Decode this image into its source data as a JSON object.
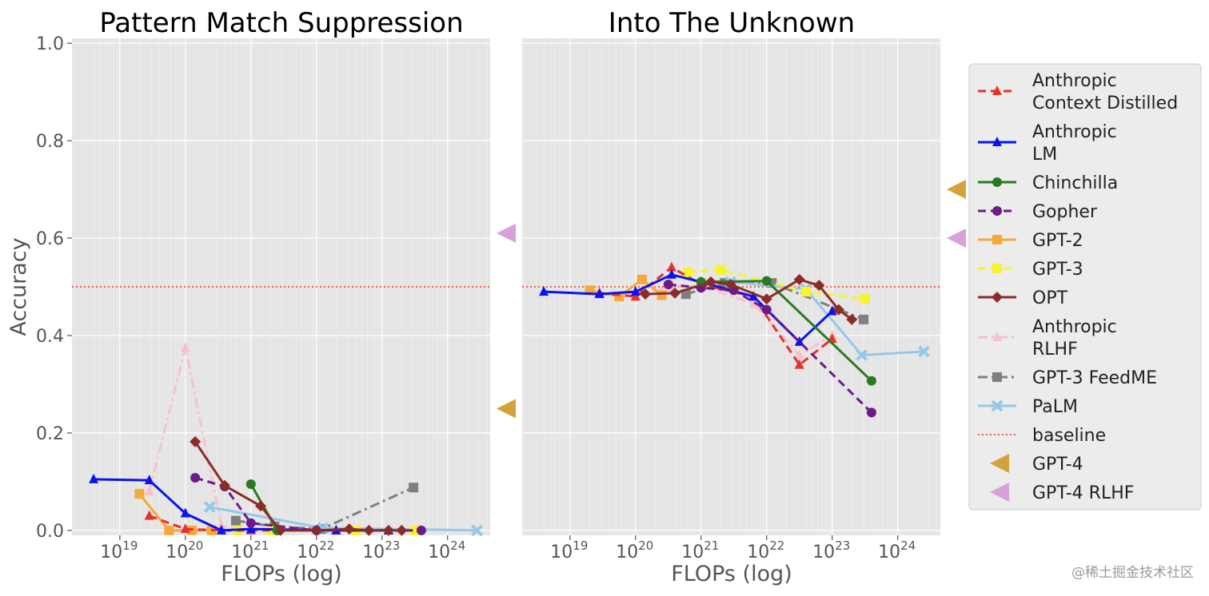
{
  "chart_data": {
    "type": "line",
    "ylabel": "Accuracy",
    "ylim": [
      -0.01,
      1.01
    ],
    "yticks": [
      0.0,
      0.2,
      0.4,
      0.6,
      0.8,
      1.0
    ],
    "ytick_labels": [
      "0.0",
      "0.2",
      "0.4",
      "0.6",
      "0.8",
      "1.0"
    ],
    "xscale": "log",
    "xtick_exponents": [
      19,
      20,
      21,
      22,
      23,
      24
    ],
    "xtick_base": "10",
    "baseline": 0.5,
    "legend": {
      "placement": "right-outside",
      "entries": [
        {
          "key": "anth_cd",
          "lines": [
            "Anthropic",
            "Context Distilled"
          ],
          "color": "#e8312b",
          "dash": "10,6",
          "marker": "triangle"
        },
        {
          "key": "anth_lm",
          "lines": [
            "Anthropic",
            "LM"
          ],
          "color": "#0b14ee",
          "dash": "",
          "marker": "triangle"
        },
        {
          "key": "chinchilla",
          "lines": [
            "Chinchilla"
          ],
          "color": "#2a7a21",
          "dash": "",
          "marker": "circle"
        },
        {
          "key": "gopher",
          "lines": [
            "Gopher"
          ],
          "color": "#6e1a87",
          "dash": "10,6",
          "marker": "circle"
        },
        {
          "key": "gpt2",
          "lines": [
            "GPT-2"
          ],
          "color": "#f5a93a",
          "dash": "",
          "marker": "square"
        },
        {
          "key": "gpt3",
          "lines": [
            "GPT-3"
          ],
          "color": "#f5f52a",
          "dash": "10,6",
          "marker": "square"
        },
        {
          "key": "opt",
          "lines": [
            "OPT"
          ],
          "color": "#8c2c29",
          "dash": "",
          "marker": "diamond"
        },
        {
          "key": "anth_rlhf",
          "lines": [
            "Anthropic",
            "RLHF"
          ],
          "color": "#f7c1cb",
          "dash": "12,5,3,5",
          "marker": "triangle"
        },
        {
          "key": "gpt3_feedme",
          "lines": [
            "GPT-3 FeedME"
          ],
          "color": "#7f7f7f",
          "dash": "12,5,3,5",
          "marker": "square"
        },
        {
          "key": "palm",
          "lines": [
            "PaLM"
          ],
          "color": "#95c8e8",
          "dash": "",
          "marker": "x"
        },
        {
          "key": "baseline",
          "lines": [
            "baseline"
          ],
          "color": "#e8312b",
          "dash": "2,3",
          "marker": "none"
        },
        {
          "key": "gpt4",
          "lines": [
            "GPT-4"
          ],
          "color": "#d4a23c",
          "dash": "",
          "marker": "left-triangle"
        },
        {
          "key": "gpt4_rlhf",
          "lines": [
            "GPT-4 RLHF"
          ],
          "color": "#d8a0dc",
          "dash": "",
          "marker": "left-triangle"
        }
      ]
    },
    "panels": [
      {
        "title": "Pattern Match Suppression",
        "xlabel": "FLOPs (log)",
        "gpt4": 0.25,
        "gpt4_rlhf": 0.61,
        "series": {
          "gpt3_feedme": {
            "x": [
              20.77,
              21.36,
              22.08,
              23.48
            ],
            "y": [
              0.02,
              0.008,
              0.003,
              0.088
            ]
          },
          "anth_rlhf": {
            "x": [
              19.45,
              20.0,
              20.55,
              21.0,
              22.3,
              23.1
            ],
            "y": [
              0.08,
              0.375,
              0.01,
              0.0,
              0.0,
              0.0
            ]
          },
          "palm": {
            "x": [
              20.37,
              22.1,
              24.45
            ],
            "y": [
              0.048,
              0.005,
              0.0
            ]
          },
          "gpt2": {
            "x": [
              19.3,
              19.75,
              20.1,
              20.4
            ],
            "y": [
              0.075,
              0.0,
              0.0,
              0.0
            ]
          },
          "gpt3": {
            "x": [
              20.8,
              21.3,
              22.6,
              23.5
            ],
            "y": [
              0.0,
              0.0,
              0.0,
              0.0
            ]
          },
          "anth_cd": {
            "x": [
              19.45,
              20.0,
              20.55,
              21.0,
              22.3,
              23.1
            ],
            "y": [
              0.03,
              0.003,
              0.0,
              0.0,
              0.0,
              0.0
            ]
          },
          "anth_lm": {
            "x": [
              18.6,
              19.45,
              20.0,
              20.55,
              21.0,
              22.3,
              23.1
            ],
            "y": [
              0.105,
              0.103,
              0.035,
              0.0,
              0.003,
              0.0,
              0.0
            ]
          },
          "gopher": {
            "x": [
              20.15,
              20.6,
              21.0,
              22.0,
              23.6
            ],
            "y": [
              0.108,
              0.09,
              0.015,
              0.0,
              0.0
            ]
          },
          "chinchilla": {
            "x": [
              21.0,
              21.4
            ],
            "y": [
              0.095,
              0.0
            ]
          },
          "opt": {
            "x": [
              20.15,
              20.6,
              21.15,
              21.45,
              22.0,
              22.5,
              22.8,
              23.1,
              23.3
            ],
            "y": [
              0.182,
              0.092,
              0.05,
              0.0,
              0.0,
              0.003,
              0.0,
              0.0,
              0.0
            ]
          }
        }
      },
      {
        "title": "Into The Unknown",
        "xlabel": "FLOPs (log)",
        "gpt4": 0.7,
        "gpt4_rlhf": 0.6,
        "series": {
          "gpt3_feedme": {
            "x": [
              20.77,
              21.36,
              22.08,
              23.48
            ],
            "y": [
              0.485,
              0.508,
              0.508,
              0.433
            ]
          },
          "anth_rlhf": {
            "x": [
              19.45,
              20.0,
              20.55,
              21.0,
              21.8,
              22.5,
              23.0
            ],
            "y": [
              0.487,
              0.485,
              0.5,
              0.503,
              0.465,
              0.36,
              0.4
            ]
          },
          "palm": {
            "x": [
              21.45,
              22.6,
              23.45,
              24.4
            ],
            "y": [
              0.51,
              0.495,
              0.36,
              0.367
            ]
          },
          "gpt2": {
            "x": [
              19.3,
              19.75,
              20.1,
              20.4
            ],
            "y": [
              0.493,
              0.48,
              0.515,
              0.483
            ]
          },
          "gpt3": {
            "x": [
              20.8,
              21.3,
              22.6,
              23.5
            ],
            "y": [
              0.53,
              0.535,
              0.49,
              0.475
            ]
          },
          "anth_cd": {
            "x": [
              19.45,
              20.0,
              20.55,
              21.0,
              21.8,
              22.5,
              23.0
            ],
            "y": [
              0.487,
              0.48,
              0.54,
              0.505,
              0.48,
              0.34,
              0.393
            ]
          },
          "anth_lm": {
            "x": [
              18.6,
              19.45,
              20.0,
              20.55,
              21.0,
              21.8,
              22.5,
              23.0
            ],
            "y": [
              0.49,
              0.485,
              0.49,
              0.525,
              0.51,
              0.48,
              0.387,
              0.45
            ]
          },
          "gopher": {
            "x": [
              20.5,
              21.0,
              21.5,
              22.0,
              23.6
            ],
            "y": [
              0.505,
              0.498,
              0.493,
              0.453,
              0.242
            ]
          },
          "chinchilla": {
            "x": [
              21.0,
              22.0,
              23.6
            ],
            "y": [
              0.51,
              0.512,
              0.307
            ]
          },
          "opt": {
            "x": [
              20.15,
              20.6,
              21.15,
              21.45,
              22.0,
              22.5,
              22.8,
              23.1,
              23.3
            ],
            "y": [
              0.485,
              0.487,
              0.51,
              0.505,
              0.475,
              0.515,
              0.503,
              0.453,
              0.433
            ]
          }
        }
      }
    ]
  },
  "watermark": "@稀土掘金技术社区"
}
